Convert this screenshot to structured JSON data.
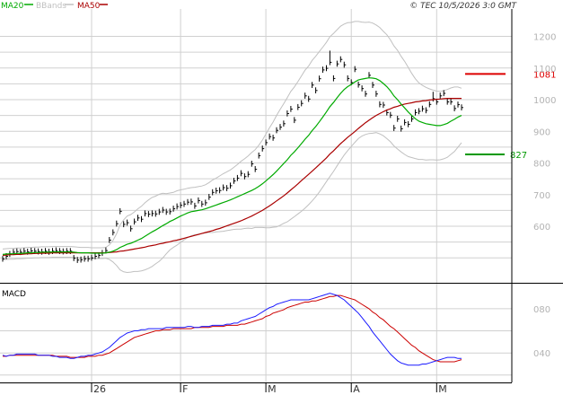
{
  "legend": {
    "ma20": "MA20",
    "bbands": "BBands",
    "ma50": "MA50"
  },
  "copyright": "© TEC 10/5/2026 3:0 GMT",
  "macd_label": "MACD",
  "colors": {
    "ma20": "#00aa00",
    "ma50": "#aa0000",
    "bbands": "#c0c0c0",
    "resistance": "#dd0000",
    "support": "#009900",
    "macd": "#1a1aff",
    "signal": "#cc0000"
  },
  "levels": {
    "resistance": {
      "label": "1081",
      "value": 1081
    },
    "support": {
      "label": "827",
      "value": 827
    }
  },
  "chart_data": [
    {
      "type": "ohlc",
      "y_ticks": [
        {
          "label": "1200",
          "value": 1200
        },
        {
          "label": "1100",
          "value": 1100
        },
        {
          "label": "1000",
          "value": 1000
        },
        {
          "label": "900",
          "value": 900
        },
        {
          "label": "800",
          "value": 800
        },
        {
          "label": "700",
          "value": 700
        },
        {
          "label": "600",
          "value": 600
        }
      ],
      "x_ticks": [
        "26",
        "F",
        "M",
        "A",
        "M"
      ],
      "ylim": [
        470,
        1250
      ],
      "n_bars": 130,
      "close": [
        497,
        505,
        512,
        518,
        520,
        518,
        521,
        519,
        522,
        521,
        520,
        519,
        521,
        519,
        521,
        523,
        521,
        520,
        521,
        521,
        499,
        493,
        494,
        497,
        497,
        500,
        505,
        508,
        515,
        523,
        556,
        580,
        608,
        647,
        606,
        611,
        592,
        614,
        626,
        622,
        640,
        638,
        640,
        639,
        645,
        651,
        645,
        646,
        655,
        662,
        666,
        670,
        676,
        677,
        664,
        681,
        670,
        674,
        692,
        707,
        712,
        713,
        722,
        720,
        728,
        743,
        752,
        767,
        757,
        764,
        797,
        780,
        823,
        845,
        864,
        883,
        879,
        903,
        913,
        924,
        956,
        970,
        935,
        976,
        988,
        1012,
        1002,
        1046,
        1029,
        1066,
        1094,
        1099,
        1118,
        1067,
        1113,
        1127,
        1110,
        1067,
        1054,
        1096,
        1047,
        1035,
        1018,
        1077,
        1046,
        1018,
        985,
        983,
        959,
        951,
        910,
        939,
        908,
        928,
        922,
        939,
        959,
        963,
        971,
        966,
        985,
        1003,
        993,
        1012,
        1020,
        993,
        993,
        972,
        984,
        975
      ],
      "highs": [
        506,
        515,
        522,
        528,
        530,
        528,
        531,
        529,
        532,
        531,
        530,
        529,
        531,
        529,
        531,
        533,
        531,
        530,
        531,
        531,
        509,
        503,
        504,
        507,
        507,
        510,
        515,
        518,
        525,
        533,
        566,
        590,
        618,
        657,
        616,
        621,
        602,
        624,
        636,
        632,
        650,
        648,
        650,
        649,
        655,
        661,
        655,
        656,
        665,
        672,
        676,
        680,
        686,
        687,
        674,
        691,
        680,
        684,
        702,
        717,
        722,
        723,
        732,
        730,
        738,
        753,
        762,
        777,
        767,
        774,
        807,
        790,
        833,
        855,
        874,
        893,
        889,
        913,
        923,
        934,
        966,
        980,
        945,
        986,
        998,
        1022,
        1012,
        1056,
        1039,
        1076,
        1104,
        1109,
        1155,
        1077,
        1123,
        1137,
        1120,
        1077,
        1064,
        1106,
        1057,
        1045,
        1028,
        1087,
        1056,
        1028,
        995,
        993,
        969,
        961,
        920,
        949,
        918,
        938,
        932,
        949,
        969,
        973,
        981,
        976,
        995,
        1025,
        1003,
        1022,
        1030,
        1003,
        1003,
        982,
        994,
        985
      ],
      "lows": [
        488,
        496,
        503,
        509,
        511,
        509,
        512,
        510,
        513,
        512,
        511,
        510,
        512,
        510,
        512,
        514,
        512,
        511,
        512,
        512,
        490,
        484,
        485,
        488,
        488,
        491,
        496,
        499,
        506,
        514,
        547,
        571,
        599,
        638,
        597,
        602,
        583,
        605,
        617,
        613,
        631,
        629,
        631,
        630,
        636,
        642,
        636,
        637,
        646,
        653,
        657,
        661,
        667,
        668,
        655,
        672,
        661,
        665,
        683,
        698,
        703,
        704,
        713,
        711,
        719,
        734,
        743,
        758,
        748,
        755,
        788,
        771,
        814,
        836,
        855,
        874,
        870,
        894,
        904,
        915,
        947,
        961,
        926,
        967,
        979,
        1003,
        993,
        1037,
        1020,
        1057,
        1085,
        1090,
        1109,
        1058,
        1104,
        1118,
        1101,
        1058,
        1045,
        1087,
        1038,
        1026,
        1009,
        1068,
        1037,
        1009,
        976,
        974,
        950,
        942,
        901,
        930,
        899,
        919,
        913,
        930,
        950,
        954,
        962,
        957,
        976,
        994,
        984,
        1003,
        1011,
        984,
        984,
        963,
        975,
        966
      ],
      "ma20": [
        511,
        512,
        513,
        513,
        514,
        514,
        515,
        516,
        516,
        517,
        517,
        518,
        518,
        518,
        519,
        519,
        519,
        519,
        519,
        519,
        518,
        517,
        516,
        516,
        516,
        515,
        515,
        515,
        515,
        516,
        518,
        521,
        526,
        533,
        538,
        543,
        546,
        551,
        556,
        561,
        568,
        575,
        582,
        588,
        595,
        602,
        608,
        615,
        620,
        626,
        632,
        637,
        642,
        646,
        648,
        650,
        652,
        655,
        659,
        663,
        667,
        671,
        675,
        679,
        683,
        688,
        693,
        698,
        703,
        708,
        713,
        719,
        726,
        734,
        743,
        753,
        763,
        774,
        786,
        798,
        810,
        824,
        835,
        848,
        861,
        875,
        887,
        902,
        915,
        930,
        945,
        961,
        978,
        991,
        1006,
        1020,
        1032,
        1041,
        1048,
        1056,
        1062,
        1065,
        1067,
        1069,
        1068,
        1066,
        1060,
        1051,
        1041,
        1028,
        1012,
        1000,
        986,
        974,
        961,
        950,
        940,
        932,
        928,
        924,
        922,
        920,
        918,
        918,
        921,
        925,
        932,
        938,
        945,
        950
      ],
      "ma50": [
        508,
        509,
        510,
        510,
        511,
        511,
        512,
        513,
        513,
        514,
        514,
        515,
        515,
        515,
        516,
        516,
        516,
        516,
        516,
        516,
        516,
        516,
        516,
        516,
        516,
        516,
        516,
        516,
        516,
        516,
        517,
        518,
        519,
        521,
        522,
        524,
        526,
        528,
        530,
        532,
        534,
        537,
        539,
        541,
        544,
        546,
        549,
        551,
        554,
        556,
        559,
        562,
        565,
        568,
        571,
        574,
        577,
        580,
        583,
        586,
        590,
        593,
        597,
        601,
        605,
        609,
        613,
        617,
        622,
        627,
        632,
        638,
        644,
        650,
        657,
        664,
        672,
        680,
        688,
        696,
        705,
        715,
        724,
        734,
        744,
        754,
        764,
        774,
        784,
        795,
        805,
        816,
        828,
        838,
        850,
        861,
        871,
        881,
        890,
        899,
        909,
        918,
        927,
        935,
        943,
        950,
        956,
        962,
        967,
        971,
        976,
        979,
        983,
        986,
        988,
        990,
        993,
        994,
        996,
        997,
        999,
        1000,
        1001,
        1002,
        1003,
        1004,
        1004,
        1004,
        1004,
        1004
      ],
      "bb_upper": [
        528,
        529,
        530,
        530,
        531,
        531,
        532,
        533,
        533,
        534,
        534,
        535,
        535,
        535,
        536,
        536,
        536,
        536,
        536,
        536,
        535,
        534,
        533,
        533,
        533,
        532,
        532,
        532,
        532,
        533,
        541,
        555,
        576,
        604,
        620,
        632,
        637,
        645,
        655,
        663,
        674,
        683,
        691,
        695,
        701,
        704,
        703,
        705,
        707,
        712,
        715,
        717,
        720,
        722,
        723,
        725,
        727,
        731,
        738,
        746,
        752,
        759,
        766,
        772,
        778,
        786,
        795,
        805,
        813,
        822,
        833,
        842,
        856,
        872,
        891,
        911,
        929,
        950,
        969,
        987,
        1006,
        1026,
        1040,
        1057,
        1075,
        1093,
        1106,
        1124,
        1137,
        1152,
        1166,
        1181,
        1199,
        1209,
        1221,
        1232,
        1239,
        1243,
        1244,
        1247,
        1247,
        1245,
        1244,
        1245,
        1242,
        1236,
        1228,
        1216,
        1205,
        1189,
        1170,
        1156,
        1137,
        1121,
        1102,
        1083,
        1066,
        1053,
        1045,
        1039,
        1034,
        1030,
        1027,
        1026,
        1029,
        1032,
        1037,
        1040,
        1040,
        1036
      ],
      "bb_lower": [
        494,
        495,
        496,
        496,
        497,
        497,
        498,
        499,
        499,
        500,
        500,
        501,
        501,
        501,
        502,
        502,
        502,
        502,
        502,
        502,
        501,
        500,
        499,
        499,
        499,
        498,
        498,
        498,
        498,
        499,
        495,
        487,
        476,
        462,
        456,
        454,
        455,
        457,
        457,
        459,
        462,
        467,
        473,
        481,
        489,
        500,
        513,
        525,
        533,
        540,
        549,
        557,
        564,
        570,
        573,
        575,
        577,
        579,
        580,
        580,
        582,
        583,
        584,
        586,
        588,
        590,
        591,
        591,
        593,
        594,
        593,
        596,
        596,
        596,
        595,
        595,
        597,
        598,
        603,
        609,
        614,
        622,
        630,
        639,
        647,
        657,
        668,
        680,
        693,
        708,
        724,
        741,
        757,
        773,
        791,
        808,
        825,
        839,
        852,
        865,
        877,
        885,
        890,
        893,
        894,
        896,
        892,
        886,
        877,
        867,
        854,
        844,
        835,
        827,
        820,
        817,
        814,
        811,
        811,
        809,
        810,
        810,
        809,
        810,
        813,
        818,
        827,
        836,
        850,
        864
      ],
      "macd": [
        38,
        37,
        38,
        38,
        39,
        39,
        39,
        39,
        39,
        39,
        38,
        38,
        38,
        38,
        37,
        37,
        36,
        36,
        36,
        35,
        35,
        36,
        37,
        37,
        38,
        38,
        39,
        40,
        41,
        43,
        45,
        48,
        51,
        54,
        56,
        58,
        59,
        60,
        60,
        61,
        61,
        62,
        62,
        62,
        62,
        62,
        63,
        63,
        63,
        63,
        63,
        63,
        64,
        64,
        63,
        63,
        64,
        64,
        64,
        65,
        65,
        65,
        65,
        66,
        66,
        67,
        67,
        69,
        70,
        71,
        72,
        73,
        75,
        77,
        79,
        81,
        82,
        84,
        85,
        86,
        87,
        88,
        88,
        88,
        88,
        88,
        88,
        89,
        90,
        91,
        92,
        93,
        94,
        93,
        92,
        90,
        88,
        85,
        82,
        79,
        76,
        72,
        68,
        64,
        59,
        55,
        51,
        47,
        43,
        39,
        36,
        33,
        31,
        30,
        29,
        29,
        29,
        29,
        30,
        30,
        31,
        32,
        33,
        34,
        35,
        36,
        36,
        36,
        35,
        35
      ],
      "signal": [
        37,
        37,
        38,
        38,
        38,
        38,
        38,
        38,
        38,
        38,
        38,
        38,
        38,
        38,
        38,
        37,
        37,
        37,
        37,
        36,
        36,
        36,
        36,
        36,
        37,
        37,
        37,
        38,
        38,
        39,
        40,
        42,
        44,
        46,
        48,
        50,
        52,
        54,
        55,
        56,
        57,
        58,
        59,
        60,
        60,
        61,
        61,
        61,
        62,
        62,
        62,
        62,
        62,
        62,
        63,
        63,
        63,
        63,
        63,
        64,
        64,
        64,
        64,
        65,
        65,
        65,
        65,
        66,
        66,
        67,
        68,
        69,
        70,
        71,
        73,
        74,
        76,
        77,
        78,
        79,
        81,
        82,
        83,
        84,
        85,
        86,
        86,
        87,
        87,
        88,
        89,
        90,
        91,
        91,
        92,
        92,
        91,
        90,
        89,
        88,
        86,
        84,
        82,
        80,
        77,
        75,
        72,
        70,
        67,
        64,
        62,
        59,
        56,
        53,
        50,
        47,
        45,
        42,
        40,
        38,
        36,
        34,
        33,
        32,
        32,
        32,
        32,
        32,
        33,
        34
      ],
      "macd_ticks": [
        {
          "label": "080",
          "value": 80
        },
        {
          "label": "040",
          "value": 40
        }
      ],
      "macd_ylim": [
        15,
        101
      ]
    }
  ]
}
